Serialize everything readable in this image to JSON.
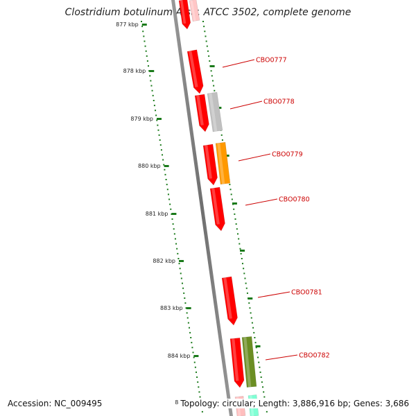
{
  "title": "Clostridium botulinum A str. ATCC 3502, complete genome",
  "accession_text": "Accession: NC_009495",
  "summary_text": "Topology: circular; Length: 3,886,916 bp; Genes: 3,686",
  "colors": {
    "backbone": "#808080",
    "forward_cds": "#ff0000",
    "gray_cds": "#c0c0c0",
    "orange_cds": "#ff9900",
    "olive_cds": "#6b8e23",
    "teal_cds": "#7fffd4",
    "ruler": "#1a7a1a",
    "label": "#cc0000"
  },
  "ruler_ticks": [
    "877 kbp",
    "878 kbp",
    "879 kbp",
    "880 kbp",
    "881 kbp",
    "882 kbp",
    "883 kbp",
    "884 kbp",
    "885 kbp"
  ],
  "gene_labels": [
    "CBO0777",
    "CBO0778",
    "CBO0779",
    "CBO0780",
    "CBO0781",
    "CBO0782"
  ]
}
